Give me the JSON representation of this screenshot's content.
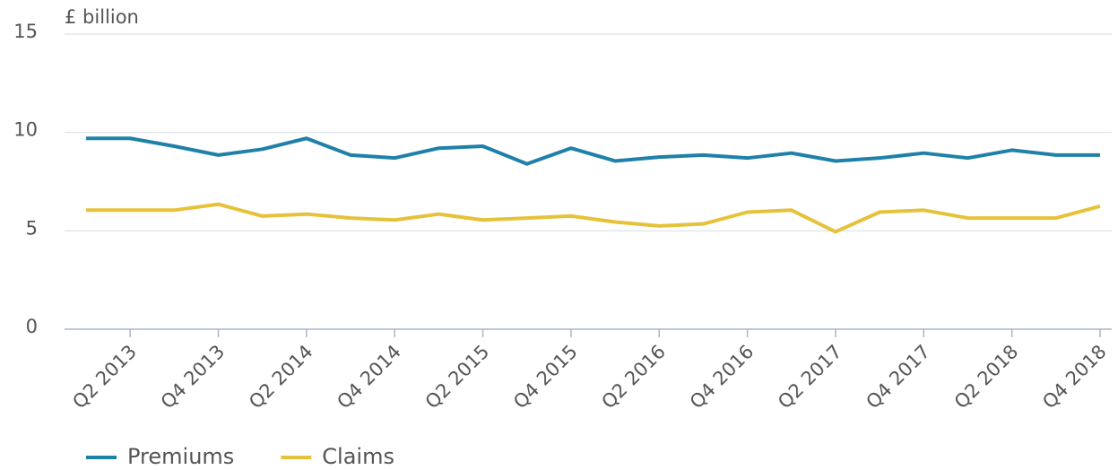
{
  "chart_data": {
    "type": "line",
    "y_label": "£ billion",
    "categories": [
      null,
      "Q2 2013",
      null,
      "Q4 2013",
      null,
      "Q2 2014",
      null,
      "Q4 2014",
      null,
      "Q2 2015",
      null,
      "Q4 2015",
      null,
      "Q2 2016",
      null,
      "Q4 2016",
      null,
      "Q2 2017",
      null,
      "Q4 2017",
      null,
      "Q2 2018",
      null,
      "Q4 2018"
    ],
    "series": [
      {
        "name": "Premiums",
        "color": "#1f80a8",
        "values": [
          9.7,
          9.7,
          9.3,
          8.85,
          9.15,
          9.7,
          8.85,
          8.7,
          9.2,
          9.3,
          8.4,
          9.2,
          8.55,
          8.75,
          8.85,
          8.7,
          8.95,
          8.55,
          8.7,
          8.95,
          8.7,
          9.1,
          8.85,
          8.85
        ]
      },
      {
        "name": "Claims",
        "color": "#e6c23a",
        "values": [
          6.05,
          6.05,
          6.05,
          6.35,
          5.75,
          5.85,
          5.65,
          5.55,
          5.85,
          5.55,
          5.65,
          5.75,
          5.45,
          5.25,
          5.35,
          5.95,
          6.05,
          4.95,
          5.95,
          6.05,
          5.65,
          5.65,
          5.65,
          6.25
        ]
      }
    ],
    "ylim": [
      0,
      15
    ],
    "yticks": [
      0,
      5,
      10,
      15
    ],
    "grid": true,
    "legend": "bottom-left"
  }
}
